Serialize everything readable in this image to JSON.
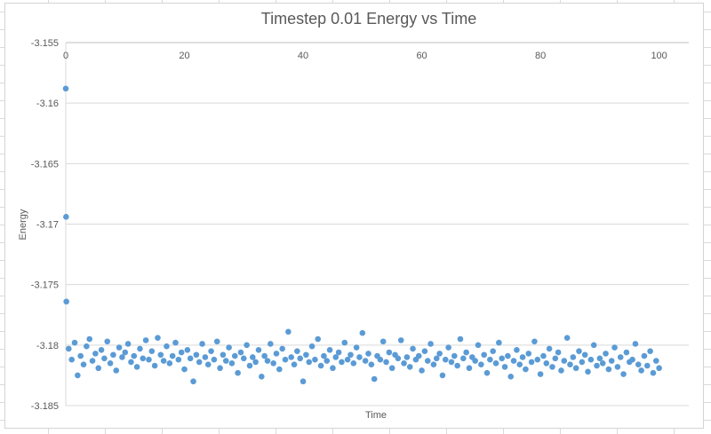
{
  "chart_data": {
    "type": "scatter",
    "title": "Timestep 0.01 Energy vs Time",
    "xlabel": "Time",
    "ylabel": "Energy",
    "xlim": [
      0,
      105
    ],
    "ylim": [
      -3.185,
      -3.155
    ],
    "x_ticks": [
      "0",
      "20",
      "40",
      "60",
      "80",
      "100"
    ],
    "y_ticks": [
      "-3.155",
      "-3.16",
      "-3.165",
      "-3.17",
      "-3.175",
      "-3.18",
      "-3.185"
    ],
    "x_axis_position": "top",
    "grid": "horizontal",
    "marker_color": "#5B9BD5",
    "initial_points": [
      [
        0,
        -3.1588
      ],
      [
        0.05,
        -3.1694
      ],
      [
        0.1,
        -3.1764
      ]
    ],
    "x_start": 0.5,
    "x_step": 0.5,
    "y": [
      -3.1803,
      -3.1812,
      -3.1798,
      -3.1825,
      -3.1809,
      -3.1816,
      -3.1801,
      -3.1795,
      -3.1813,
      -3.1807,
      -3.1819,
      -3.1804,
      -3.1811,
      -3.1797,
      -3.1815,
      -3.1808,
      -3.1821,
      -3.1802,
      -3.181,
      -3.1806,
      -3.1799,
      -3.1814,
      -3.1809,
      -3.1818,
      -3.1803,
      -3.1811,
      -3.1796,
      -3.1812,
      -3.1805,
      -3.1817,
      -3.1794,
      -3.1808,
      -3.1813,
      -3.1801,
      -3.1815,
      -3.1809,
      -3.1798,
      -3.1812,
      -3.1806,
      -3.182,
      -3.1804,
      -3.1811,
      -3.183,
      -3.1808,
      -3.1814,
      -3.1799,
      -3.181,
      -3.1816,
      -3.1805,
      -3.1812,
      -3.1797,
      -3.1819,
      -3.1808,
      -3.1813,
      -3.1802,
      -3.1815,
      -3.1809,
      -3.1823,
      -3.1806,
      -3.1811,
      -3.18,
      -3.1817,
      -3.181,
      -3.1814,
      -3.1804,
      -3.1826,
      -3.1809,
      -3.1813,
      -3.1799,
      -3.1815,
      -3.1807,
      -3.182,
      -3.1803,
      -3.1812,
      -3.1789,
      -3.181,
      -3.1816,
      -3.1805,
      -3.1811,
      -3.183,
      -3.1808,
      -3.1814,
      -3.1801,
      -3.1812,
      -3.1795,
      -3.1817,
      -3.1809,
      -3.1813,
      -3.1804,
      -3.1819,
      -3.181,
      -3.1806,
      -3.1814,
      -3.1798,
      -3.1812,
      -3.1808,
      -3.1815,
      -3.1802,
      -3.181,
      -3.179,
      -3.1813,
      -3.1807,
      -3.1816,
      -3.1828,
      -3.1809,
      -3.1812,
      -3.1797,
      -3.1814,
      -3.1806,
      -3.1819,
      -3.1808,
      -3.1811,
      -3.1796,
      -3.1815,
      -3.181,
      -3.1818,
      -3.1803,
      -3.1812,
      -3.1809,
      -3.1821,
      -3.1805,
      -3.1813,
      -3.1799,
      -3.1816,
      -3.1811,
      -3.1807,
      -3.1825,
      -3.1812,
      -3.1802,
      -3.1814,
      -3.1809,
      -3.1817,
      -3.1795,
      -3.1811,
      -3.1806,
      -3.1819,
      -3.181,
      -3.1813,
      -3.18,
      -3.1816,
      -3.1808,
      -3.1823,
      -3.1812,
      -3.1805,
      -3.1815,
      -3.1798,
      -3.1811,
      -3.1818,
      -3.1809,
      -3.1826,
      -3.1813,
      -3.1804,
      -3.1816,
      -3.181,
      -3.182,
      -3.1807,
      -3.1814,
      -3.1797,
      -3.1812,
      -3.1824,
      -3.1809,
      -3.1815,
      -3.1803,
      -3.1818,
      -3.1811,
      -3.1806,
      -3.1821,
      -3.1813,
      -3.1794,
      -3.1816,
      -3.181,
      -3.1819,
      -3.1805,
      -3.1814,
      -3.1808,
      -3.1822,
      -3.1812,
      -3.18,
      -3.1817,
      -3.1811,
      -3.1815,
      -3.1807,
      -3.182,
      -3.1813,
      -3.1802,
      -3.1818,
      -3.181,
      -3.1824,
      -3.1806,
      -3.1814,
      -3.1812,
      -3.1799,
      -3.1816,
      -3.1821,
      -3.1809,
      -3.1817,
      -3.1805,
      -3.1823,
      -3.1813,
      -3.1819
    ]
  }
}
